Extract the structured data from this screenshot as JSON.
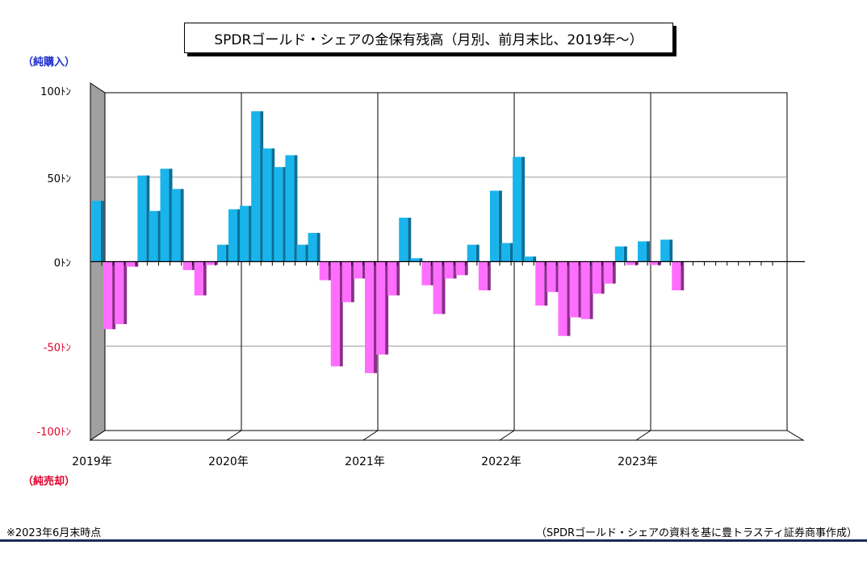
{
  "title": "SPDRゴールド・シェアの金保有残高（月別、前月末比、2019年～）",
  "label_top": "（純購入）",
  "label_bottom": "（純売却）",
  "footnote_left": "※2023年6月末時点",
  "footnote_right": "（SPDRゴールド・シェアの資料を基に豊トラスティ証券商事作成）",
  "colors": {
    "positive": "#19b4ec",
    "negative": "#ff6eff",
    "red_tick": "#e0002a"
  },
  "chart_data": {
    "type": "bar",
    "title": "SPDRゴールド・シェアの金保有残高（月別、前月末比、2019年～）",
    "ylabel": "",
    "unit": "ﾄﾝ",
    "ylim": [
      -100,
      100
    ],
    "yticks": [
      100,
      50,
      0,
      -50,
      -100
    ],
    "ytick_labels": [
      "100ﾄﾝ",
      "50ﾄﾝ",
      "0ﾄﾝ",
      "-50ﾄﾝ",
      "-100ﾄﾝ"
    ],
    "year_labels": [
      "2019年",
      "2020年",
      "2021年",
      "2022年",
      "2023年"
    ],
    "categories": [
      "2019-01",
      "2019-02",
      "2019-03",
      "2019-04",
      "2019-05",
      "2019-06",
      "2019-07",
      "2019-08",
      "2019-09",
      "2019-10",
      "2019-11",
      "2019-12",
      "2020-01",
      "2020-02",
      "2020-03",
      "2020-04",
      "2020-05",
      "2020-06",
      "2020-07",
      "2020-08",
      "2020-09",
      "2020-10",
      "2020-11",
      "2020-12",
      "2021-01",
      "2021-02",
      "2021-03",
      "2021-04",
      "2021-05",
      "2021-06",
      "2021-07",
      "2021-08",
      "2021-09",
      "2021-10",
      "2021-11",
      "2021-12",
      "2022-01",
      "2022-02",
      "2022-03",
      "2022-04",
      "2022-05",
      "2022-06",
      "2022-07",
      "2022-08",
      "2022-09",
      "2022-10",
      "2022-11",
      "2022-12",
      "2023-01",
      "2023-02",
      "2023-03",
      "2023-04",
      "2023-05",
      "2023-06",
      "2023-07",
      "2023-08",
      "2023-09",
      "2023-10",
      "2023-11",
      "2023-12"
    ],
    "values": [
      36,
      -40,
      -37,
      -3,
      51,
      30,
      55,
      43,
      -5,
      -20,
      -2,
      10,
      31,
      33,
      89,
      67,
      56,
      63,
      10,
      17,
      -11,
      -62,
      -24,
      -10,
      -66,
      -55,
      -20,
      26,
      2,
      -14,
      -31,
      -10,
      -8,
      10,
      -17,
      42,
      11,
      62,
      3,
      -26,
      -18,
      -44,
      -33,
      -34,
      -19,
      -13,
      9,
      -2,
      12,
      -2,
      13,
      -17,
      0,
      0,
      0,
      0,
      0,
      0,
      0,
      0
    ],
    "grid": true
  }
}
